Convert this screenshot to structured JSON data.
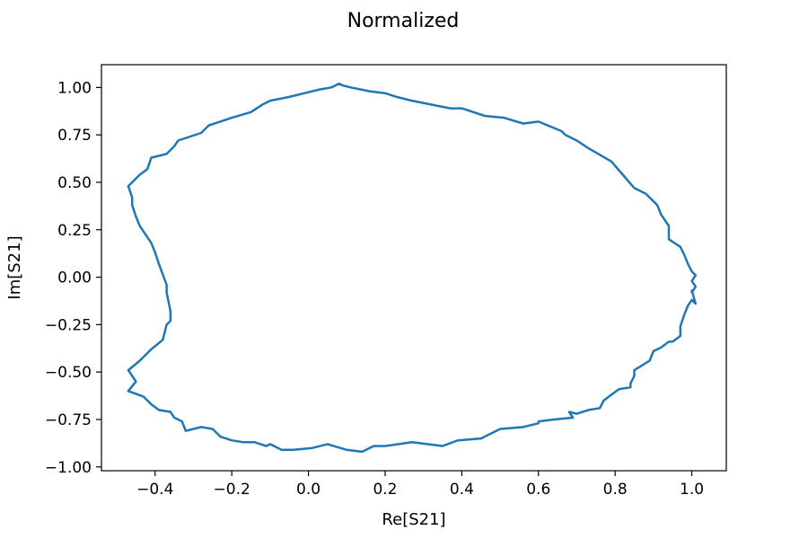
{
  "chart_data": {
    "type": "line",
    "title": "Normalized",
    "xlabel": "Re[S21]",
    "ylabel": "Im[S21]",
    "xlim": [
      -0.54,
      1.09
    ],
    "ylim": [
      -1.02,
      1.12
    ],
    "x_ticks": [
      {
        "value": -0.4,
        "label": "−0.4"
      },
      {
        "value": -0.2,
        "label": "−0.2"
      },
      {
        "value": 0.0,
        "label": "0.0"
      },
      {
        "value": 0.2,
        "label": "0.2"
      },
      {
        "value": 0.4,
        "label": "0.4"
      },
      {
        "value": 0.6,
        "label": "0.6"
      },
      {
        "value": 0.8,
        "label": "0.8"
      },
      {
        "value": 1.0,
        "label": "1.0"
      }
    ],
    "y_ticks": [
      {
        "value": -1.0,
        "label": "−1.00"
      },
      {
        "value": -0.75,
        "label": "−0.75"
      },
      {
        "value": -0.5,
        "label": "−0.50"
      },
      {
        "value": -0.25,
        "label": "−0.25"
      },
      {
        "value": 0.0,
        "label": "0.00"
      },
      {
        "value": 0.25,
        "label": "0.25"
      },
      {
        "value": 0.5,
        "label": "0.50"
      },
      {
        "value": 0.75,
        "label": "0.75"
      },
      {
        "value": 1.0,
        "label": "1.00"
      }
    ],
    "grid": false,
    "legend": "none",
    "series": [
      {
        "color": "#1f77b4",
        "x": [
          1.0,
          1.01,
          1.0,
          0.99,
          0.98,
          0.97,
          0.97,
          0.95,
          0.94,
          0.92,
          0.9,
          0.89,
          0.85,
          0.85,
          0.84,
          0.84,
          0.81,
          0.79,
          0.77,
          0.76,
          0.73,
          0.7,
          0.68,
          0.69,
          0.64,
          0.6,
          0.6,
          0.56,
          0.5,
          0.45,
          0.39,
          0.35,
          0.27,
          0.2,
          0.17,
          0.14,
          0.1,
          0.05,
          0.01,
          -0.04,
          -0.07,
          -0.09,
          -0.1,
          -0.11,
          -0.14,
          -0.17,
          -0.2,
          -0.23,
          -0.25,
          -0.28,
          -0.32,
          -0.33,
          -0.35,
          -0.36,
          -0.39,
          -0.41,
          -0.43,
          -0.47,
          -0.45,
          -0.47,
          -0.44,
          -0.42,
          -0.41,
          -0.38,
          -0.37,
          -0.36,
          -0.36,
          -0.37,
          -0.37,
          -0.39,
          -0.4,
          -0.41,
          -0.42,
          -0.44,
          -0.45,
          -0.46,
          -0.46,
          -0.47,
          -0.45,
          -0.44,
          -0.42,
          -0.41,
          -0.37,
          -0.35,
          -0.34,
          -0.28,
          -0.26,
          -0.2,
          -0.15,
          -0.12,
          -0.1,
          -0.05,
          -0.01,
          0.03,
          0.06,
          0.08,
          0.09,
          0.11,
          0.16,
          0.2,
          0.23,
          0.27,
          0.32,
          0.37,
          0.4,
          0.46,
          0.51,
          0.56,
          0.6,
          0.66,
          0.67,
          0.7,
          0.73,
          0.79,
          0.82,
          0.85,
          0.88,
          0.91,
          0.92,
          0.94,
          0.94,
          0.97,
          0.98,
          0.99,
          1.0,
          1.01,
          1.0,
          1.01,
          1.0
        ],
        "y": [
          -0.07,
          -0.14,
          -0.12,
          -0.15,
          -0.2,
          -0.26,
          -0.31,
          -0.34,
          -0.34,
          -0.37,
          -0.39,
          -0.44,
          -0.49,
          -0.52,
          -0.56,
          -0.58,
          -0.59,
          -0.62,
          -0.65,
          -0.69,
          -0.7,
          -0.72,
          -0.71,
          -0.74,
          -0.75,
          -0.76,
          -0.77,
          -0.79,
          -0.8,
          -0.85,
          -0.86,
          -0.89,
          -0.87,
          -0.89,
          -0.89,
          -0.92,
          -0.91,
          -0.88,
          -0.9,
          -0.91,
          -0.91,
          -0.89,
          -0.88,
          -0.89,
          -0.87,
          -0.87,
          -0.86,
          -0.84,
          -0.8,
          -0.79,
          -0.81,
          -0.76,
          -0.74,
          -0.71,
          -0.7,
          -0.67,
          -0.63,
          -0.6,
          -0.55,
          -0.49,
          -0.44,
          -0.4,
          -0.38,
          -0.33,
          -0.25,
          -0.23,
          -0.18,
          -0.08,
          -0.04,
          0.07,
          0.13,
          0.18,
          0.21,
          0.27,
          0.32,
          0.38,
          0.42,
          0.48,
          0.52,
          0.54,
          0.57,
          0.63,
          0.65,
          0.69,
          0.72,
          0.76,
          0.8,
          0.84,
          0.87,
          0.91,
          0.93,
          0.95,
          0.97,
          0.99,
          1.0,
          1.02,
          1.01,
          1.0,
          0.98,
          0.97,
          0.95,
          0.93,
          0.91,
          0.89,
          0.89,
          0.85,
          0.84,
          0.81,
          0.82,
          0.77,
          0.75,
          0.72,
          0.68,
          0.61,
          0.54,
          0.47,
          0.44,
          0.38,
          0.33,
          0.27,
          0.2,
          0.16,
          0.12,
          0.07,
          0.03,
          0.01,
          -0.02,
          -0.05,
          -0.08
        ]
      }
    ]
  }
}
